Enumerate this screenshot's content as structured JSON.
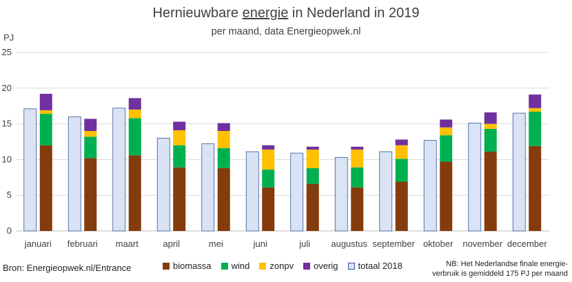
{
  "chart_data": {
    "type": "bar",
    "title_pre": "Hernieuwbare ",
    "title_under": "energie",
    "title_post": " in Nederland in 2019",
    "subtitle": "per maand, data Energieopwek.nl",
    "ylabel": "PJ",
    "ylim": [
      0,
      25
    ],
    "yticks": [
      "0",
      "5",
      "10",
      "15",
      "20",
      "25"
    ],
    "grid": true,
    "legend_position": "bottom",
    "categories": [
      "januari",
      "februari",
      "maart",
      "april",
      "mei",
      "juni",
      "juli",
      "augustus",
      "september",
      "oktober",
      "november",
      "december"
    ],
    "series_2019_stacked": [
      {
        "name": "biomassa",
        "color": "#843c0c",
        "values": [
          12.0,
          10.2,
          10.6,
          8.9,
          8.8,
          6.1,
          6.6,
          6.1,
          6.9,
          9.7,
          11.1,
          11.9
        ]
      },
      {
        "name": "wind",
        "color": "#00b050",
        "values": [
          4.4,
          3.0,
          5.2,
          3.1,
          2.8,
          2.5,
          2.2,
          2.8,
          3.2,
          3.7,
          3.2,
          4.8
        ]
      },
      {
        "name": "zonpv",
        "color": "#ffc000",
        "values": [
          0.5,
          0.8,
          1.2,
          2.1,
          2.4,
          2.8,
          2.6,
          2.5,
          1.9,
          1.1,
          0.7,
          0.5
        ]
      },
      {
        "name": "overig",
        "color": "#7030a0",
        "values": [
          2.3,
          1.7,
          1.6,
          1.2,
          1.1,
          0.6,
          0.4,
          0.4,
          0.8,
          1.1,
          1.6,
          1.9
        ]
      }
    ],
    "series_2018_total": {
      "name": "totaal 2018",
      "color": "#dae3f3",
      "edge": "#2f5597",
      "values": [
        17.1,
        16.0,
        17.2,
        13.0,
        12.2,
        11.1,
        10.9,
        10.3,
        11.1,
        12.7,
        15.1,
        16.5
      ]
    }
  },
  "source": "Bron: Energieopwek.nl/Entrance",
  "note_line1": "NB: Het Nederlandse finale energie-",
  "note_line2": "verbruik is gemiddeld 175 PJ per maand"
}
